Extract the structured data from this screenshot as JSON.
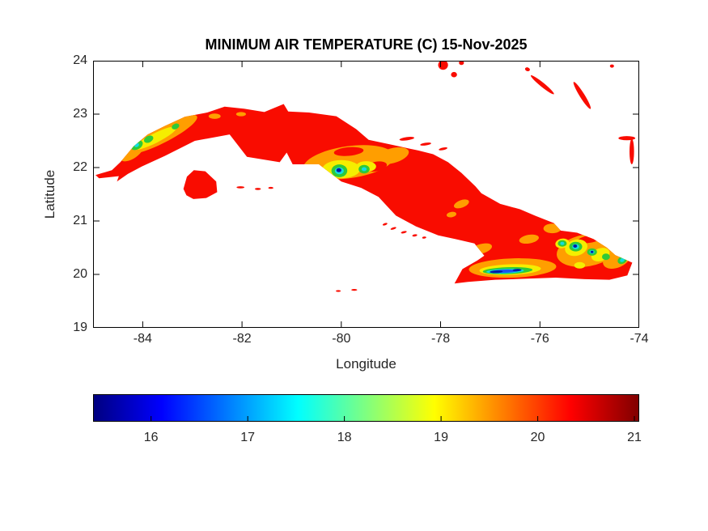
{
  "chart_data": {
    "type": "heatmap",
    "title": "MINIMUM AIR TEMPERATURE (C) 15-Nov-2025",
    "xlabel": "Longitude",
    "ylabel": "Latitude",
    "xlim": [
      -85,
      -74
    ],
    "ylim": [
      19,
      24
    ],
    "xticks": [
      -84,
      -82,
      -80,
      -78,
      -76,
      -74
    ],
    "yticks": [
      19,
      20,
      21,
      22,
      23,
      24
    ],
    "grid": false,
    "colorbar": {
      "orientation": "horizontal",
      "position": "below",
      "colormap": "jet",
      "min": 15.4,
      "max": 21.05,
      "ticks": [
        16,
        17,
        18,
        19,
        20,
        21
      ],
      "gradient": [
        {
          "pos": 0,
          "color": "#000080"
        },
        {
          "pos": 0.125,
          "color": "#0000FF"
        },
        {
          "pos": 0.375,
          "color": "#00FFFF"
        },
        {
          "pos": 0.625,
          "color": "#FFFF00"
        },
        {
          "pos": 0.875,
          "color": "#FF0000"
        },
        {
          "pos": 1,
          "color": "#800000"
        }
      ]
    },
    "map": {
      "sea_color": "#FFFFFF",
      "palette": {
        "red": {
          "hex": "#F90C00",
          "approx_temp_c": 20.8
        },
        "orange": {
          "hex": "#FF9E00",
          "approx_temp_c": 19.7
        },
        "yellow": {
          "hex": "#F5EE00",
          "approx_temp_c": 18.8
        },
        "green": {
          "hex": "#2FC938",
          "approx_temp_c": 18.0
        },
        "cyan": {
          "hex": "#12DCE0",
          "approx_temp_c": 17.2
        },
        "blue": {
          "hex": "#1A55F2",
          "approx_temp_c": 16.4
        },
        "navy": {
          "hex": "#001DA8",
          "approx_temp_c": 15.7
        }
      },
      "outline": {
        "cuba_main_island": [
          [
            -84.95,
            21.86
          ],
          [
            -84.62,
            21.95
          ],
          [
            -84.45,
            22.1
          ],
          [
            -84.18,
            22.4
          ],
          [
            -83.9,
            22.62
          ],
          [
            -83.55,
            22.78
          ],
          [
            -83.15,
            22.95
          ],
          [
            -82.7,
            23.03
          ],
          [
            -82.35,
            23.14
          ],
          [
            -81.95,
            23.1
          ],
          [
            -81.55,
            23.04
          ],
          [
            -81.16,
            23.19
          ],
          [
            -81.07,
            23.05
          ],
          [
            -80.65,
            23.03
          ],
          [
            -80.1,
            22.96
          ],
          [
            -79.7,
            22.72
          ],
          [
            -79.45,
            22.52
          ],
          [
            -78.95,
            22.42
          ],
          [
            -78.45,
            22.32
          ],
          [
            -78.15,
            22.25
          ],
          [
            -77.85,
            22.1
          ],
          [
            -77.58,
            21.9
          ],
          [
            -77.3,
            21.65
          ],
          [
            -77.18,
            21.52
          ],
          [
            -76.8,
            21.32
          ],
          [
            -76.4,
            21.22
          ],
          [
            -76.1,
            21.1
          ],
          [
            -75.72,
            20.96
          ],
          [
            -75.58,
            20.82
          ],
          [
            -75.25,
            20.78
          ],
          [
            -74.92,
            20.66
          ],
          [
            -74.65,
            20.5
          ],
          [
            -74.48,
            20.36
          ],
          [
            -74.14,
            20.22
          ],
          [
            -74.24,
            19.98
          ],
          [
            -74.6,
            19.9
          ],
          [
            -75.1,
            19.91
          ],
          [
            -75.68,
            19.94
          ],
          [
            -76.25,
            19.92
          ],
          [
            -76.9,
            19.9
          ],
          [
            -77.45,
            19.86
          ],
          [
            -77.72,
            19.83
          ],
          [
            -77.56,
            20.1
          ],
          [
            -77.26,
            20.26
          ],
          [
            -77.12,
            20.35
          ],
          [
            -77.32,
            20.58
          ],
          [
            -77.7,
            20.66
          ],
          [
            -78.05,
            20.73
          ],
          [
            -78.5,
            20.9
          ],
          [
            -78.9,
            21.1
          ],
          [
            -79.25,
            21.45
          ],
          [
            -79.6,
            21.62
          ],
          [
            -80.0,
            21.74
          ],
          [
            -80.45,
            22.06
          ],
          [
            -80.98,
            22.06
          ],
          [
            -81.1,
            22.28
          ],
          [
            -81.24,
            22.1
          ],
          [
            -81.9,
            22.2
          ],
          [
            -82.25,
            22.62
          ],
          [
            -82.95,
            22.5
          ],
          [
            -83.55,
            22.22
          ],
          [
            -84.02,
            22.02
          ],
          [
            -84.3,
            21.88
          ],
          [
            -84.52,
            21.74
          ],
          [
            -84.48,
            21.84
          ],
          [
            -84.88,
            21.8
          ]
        ],
        "isla_de_la_juventud": [
          [
            -83.18,
            21.6
          ],
          [
            -83.11,
            21.83
          ],
          [
            -82.97,
            21.95
          ],
          [
            -82.74,
            21.93
          ],
          [
            -82.52,
            21.74
          ],
          [
            -82.5,
            21.54
          ],
          [
            -82.72,
            21.43
          ],
          [
            -82.98,
            21.41
          ],
          [
            -83.12,
            21.48
          ]
        ]
      },
      "islets": [
        [
          -77.95,
          23.92,
          0.1,
          0.09,
          0
        ],
        [
          -77.73,
          23.74,
          0.06,
          0.05,
          0
        ],
        [
          -77.58,
          23.96,
          0.05,
          0.04,
          0
        ],
        [
          -76.25,
          23.84,
          0.05,
          0.035,
          20
        ],
        [
          -74.55,
          23.9,
          0.04,
          0.03,
          0
        ],
        [
          -75.95,
          23.55,
          0.3,
          0.04,
          39
        ],
        [
          -75.15,
          23.35,
          0.32,
          0.045,
          58
        ],
        [
          -74.25,
          22.55,
          0.17,
          0.04,
          0
        ],
        [
          -74.15,
          22.3,
          0.045,
          0.24,
          0
        ],
        [
          -78.68,
          22.54,
          0.15,
          0.03,
          -8
        ],
        [
          -78.3,
          22.44,
          0.11,
          0.025,
          -8
        ],
        [
          -77.95,
          22.35,
          0.09,
          0.022,
          -12
        ],
        [
          -82.03,
          21.63,
          0.08,
          0.02,
          0
        ],
        [
          -81.68,
          21.6,
          0.06,
          0.02,
          0
        ],
        [
          -81.42,
          21.62,
          0.05,
          0.018,
          0
        ],
        [
          -79.12,
          20.94,
          0.05,
          0.02,
          -20
        ],
        [
          -78.95,
          20.86,
          0.06,
          0.02,
          -18
        ],
        [
          -78.74,
          20.79,
          0.06,
          0.02,
          -14
        ],
        [
          -78.52,
          20.73,
          0.05,
          0.02,
          -10
        ],
        [
          -78.33,
          20.69,
          0.04,
          0.018,
          -8
        ],
        [
          -80.06,
          19.69,
          0.05,
          0.016,
          0
        ],
        [
          -79.74,
          19.71,
          0.06,
          0.016,
          0
        ]
      ],
      "temperature_patches": [
        [
          -83.62,
          22.62,
          0.8,
          0.16,
          -27,
          "orange"
        ],
        [
          -84.22,
          22.3,
          0.28,
          0.13,
          -35,
          "orange"
        ],
        [
          -83.75,
          22.55,
          0.48,
          0.09,
          -27,
          "yellow"
        ],
        [
          -83.5,
          22.68,
          0.12,
          0.05,
          -27,
          "yellow"
        ],
        [
          -84.12,
          22.42,
          0.13,
          0.08,
          -30,
          "green"
        ],
        [
          -83.88,
          22.53,
          0.1,
          0.06,
          -27,
          "green"
        ],
        [
          -83.34,
          22.77,
          0.08,
          0.05,
          -25,
          "green"
        ],
        [
          -84.12,
          22.42,
          0.05,
          0.035,
          -30,
          "cyan"
        ],
        [
          -82.55,
          22.96,
          0.12,
          0.05,
          0,
          "orange"
        ],
        [
          -82.02,
          23.0,
          0.1,
          0.04,
          0,
          "orange"
        ],
        [
          -79.85,
          22.1,
          0.92,
          0.3,
          -8,
          "orange"
        ],
        [
          -78.98,
          22.22,
          0.35,
          0.14,
          -15,
          "orange"
        ],
        [
          -80.55,
          21.98,
          0.26,
          0.13,
          0,
          "orange"
        ],
        [
          -79.85,
          22.3,
          0.3,
          0.08,
          -5,
          "red"
        ],
        [
          -79.3,
          22.02,
          0.22,
          0.09,
          -10,
          "red"
        ],
        [
          -80.0,
          21.97,
          0.38,
          0.17,
          0,
          "yellow"
        ],
        [
          -79.5,
          22.02,
          0.2,
          0.1,
          0,
          "yellow"
        ],
        [
          -80.04,
          21.94,
          0.16,
          0.12,
          0,
          "green"
        ],
        [
          -79.54,
          21.97,
          0.11,
          0.08,
          0,
          "green"
        ],
        [
          -80.04,
          21.94,
          0.09,
          0.065,
          0,
          "cyan"
        ],
        [
          -79.54,
          21.97,
          0.05,
          0.038,
          0,
          "cyan"
        ],
        [
          -80.05,
          21.95,
          0.05,
          0.038,
          0,
          "navy"
        ],
        [
          -77.58,
          21.32,
          0.16,
          0.07,
          -20,
          "orange"
        ],
        [
          -77.78,
          21.12,
          0.1,
          0.05,
          -10,
          "orange"
        ],
        [
          -76.55,
          20.12,
          0.88,
          0.18,
          -2,
          "orange"
        ],
        [
          -75.05,
          20.45,
          0.62,
          0.3,
          -10,
          "orange"
        ],
        [
          -74.45,
          20.3,
          0.3,
          0.17,
          -25,
          "orange"
        ],
        [
          -75.75,
          20.86,
          0.18,
          0.09,
          0,
          "orange"
        ],
        [
          -76.22,
          20.66,
          0.2,
          0.08,
          -10,
          "orange"
        ],
        [
          -77.18,
          20.48,
          0.22,
          0.09,
          -15,
          "orange"
        ],
        [
          -75.0,
          20.66,
          0.25,
          0.07,
          -10,
          "red"
        ],
        [
          -76.6,
          20.09,
          0.62,
          0.1,
          -2,
          "yellow"
        ],
        [
          -76.65,
          20.07,
          0.5,
          0.065,
          -2,
          "green"
        ],
        [
          -76.7,
          20.06,
          0.38,
          0.042,
          -2,
          "cyan"
        ],
        [
          -76.7,
          20.06,
          0.26,
          0.03,
          -2,
          "blue"
        ],
        [
          -76.88,
          20.05,
          0.13,
          0.026,
          -2,
          "navy"
        ],
        [
          -76.46,
          20.08,
          0.09,
          0.022,
          -2,
          "navy"
        ],
        [
          -75.2,
          20.17,
          0.11,
          0.06,
          0,
          "yellow"
        ],
        [
          -75.27,
          20.5,
          0.23,
          0.15,
          -15,
          "yellow"
        ],
        [
          -74.78,
          20.37,
          0.19,
          0.12,
          -20,
          "yellow"
        ],
        [
          -75.55,
          20.58,
          0.14,
          0.09,
          -10,
          "yellow"
        ],
        [
          -75.28,
          20.52,
          0.13,
          0.09,
          0,
          "green"
        ],
        [
          -74.95,
          20.42,
          0.1,
          0.07,
          0,
          "green"
        ],
        [
          -74.67,
          20.33,
          0.08,
          0.06,
          0,
          "green"
        ],
        [
          -75.55,
          20.58,
          0.09,
          0.06,
          0,
          "green"
        ],
        [
          -75.28,
          20.52,
          0.07,
          0.05,
          0,
          "cyan"
        ],
        [
          -74.95,
          20.42,
          0.05,
          0.035,
          0,
          "cyan"
        ],
        [
          -75.55,
          20.58,
          0.04,
          0.03,
          0,
          "cyan"
        ],
        [
          -75.29,
          20.53,
          0.04,
          0.03,
          0,
          "navy"
        ],
        [
          -74.95,
          20.42,
          0.03,
          0.022,
          0,
          "navy"
        ],
        [
          -74.34,
          20.27,
          0.1,
          0.07,
          -30,
          "green"
        ],
        [
          -74.34,
          20.27,
          0.05,
          0.035,
          -30,
          "cyan"
        ]
      ]
    }
  }
}
